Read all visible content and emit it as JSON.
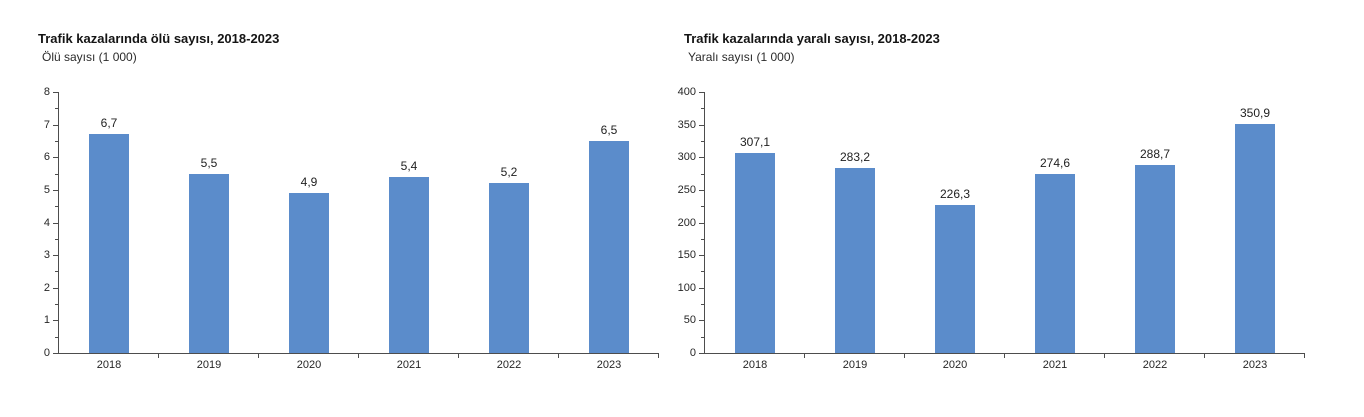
{
  "page": {
    "background": "#ffffff"
  },
  "chart_data": [
    {
      "type": "bar",
      "title": "Trafik kazalarında ölü sayısı, 2018-2023",
      "ylabel": "Ölü sayısı (1 000)",
      "xlabel": "",
      "categories": [
        "2018",
        "2019",
        "2020",
        "2021",
        "2022",
        "2023"
      ],
      "values": [
        6.7,
        5.5,
        4.9,
        5.4,
        5.2,
        6.5
      ],
      "value_labels": [
        "6,7",
        "5,5",
        "4,9",
        "5,4",
        "5,2",
        "6,5"
      ],
      "ylim": [
        0,
        8
      ],
      "ytick_step": 1,
      "ytick_minor_step": 0.5,
      "ytick_labels": [
        "0",
        "1",
        "2",
        "3",
        "4",
        "5",
        "6",
        "7",
        "8"
      ],
      "bar_color": "#5B8CCB",
      "axis_color": "#4d4d4d",
      "grid": false,
      "legend": "none"
    },
    {
      "type": "bar",
      "title": "Trafik kazalarında yaralı sayısı, 2018-2023",
      "ylabel": "Yaralı sayısı (1 000)",
      "xlabel": "",
      "categories": [
        "2018",
        "2019",
        "2020",
        "2021",
        "2022",
        "2023"
      ],
      "values": [
        307.1,
        283.2,
        226.3,
        274.6,
        288.7,
        350.9
      ],
      "value_labels": [
        "307,1",
        "283,2",
        "226,3",
        "274,6",
        "288,7",
        "350,9"
      ],
      "ylim": [
        0,
        400
      ],
      "ytick_step": 50,
      "ytick_minor_step": 25,
      "ytick_labels": [
        "0",
        "50",
        "100",
        "150",
        "200",
        "250",
        "300",
        "350",
        "400"
      ],
      "bar_color": "#5B8CCB",
      "axis_color": "#4d4d4d",
      "grid": false,
      "legend": "none"
    }
  ]
}
